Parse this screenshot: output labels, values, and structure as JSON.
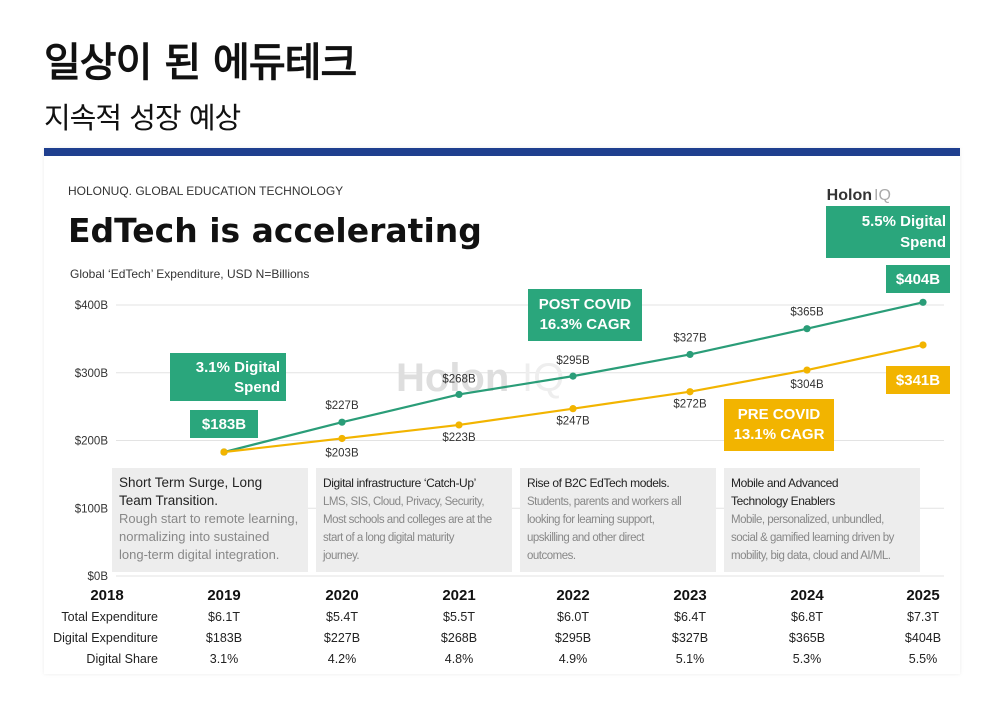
{
  "slide": {
    "title": "일상이 된 에듀테크",
    "subtitle": "지속적 성장 예상"
  },
  "colors": {
    "navy": "#1f3f8f",
    "green": "#2a9d78",
    "green_box": "#2aa67c",
    "yellow": "#f2b400",
    "grid": "#e3e3e3",
    "panel": "#ededed"
  },
  "chart_data": {
    "type": "line",
    "source": "HOLONUQ. GLOBAL EDUCATION TECHNOLOGY",
    "brand": "Holon",
    "brand_suffix": "IQ",
    "watermark": "Holon",
    "watermark_suffix": "IQ",
    "title": "EdTech is accelerating",
    "subtitle": "Global ‘EdTech’ Expenditure, USD N=Billions",
    "ylim": [
      0,
      400
    ],
    "y_ticks": [
      {
        "value": 0,
        "label": "$0B"
      },
      {
        "value": 100,
        "label": "$100B"
      },
      {
        "value": 200,
        "label": "$200B"
      },
      {
        "value": 300,
        "label": "$300B"
      },
      {
        "value": 400,
        "label": "$400B"
      }
    ],
    "categories": [
      "2018",
      "2019",
      "2020",
      "2021",
      "2022",
      "2023",
      "2024",
      "2025"
    ],
    "series": [
      {
        "name": "Post COVID",
        "color": "#2a9d78",
        "x": [
          "2019",
          "2020",
          "2021",
          "2022",
          "2023",
          "2024",
          "2025"
        ],
        "values": [
          183,
          227,
          268,
          295,
          327,
          365,
          404
        ],
        "labels": [
          "",
          "$227B",
          "$268B",
          "$295B",
          "$327B",
          "$365B",
          ""
        ]
      },
      {
        "name": "Pre COVID",
        "color": "#f2b400",
        "x": [
          "2019",
          "2020",
          "2021",
          "2022",
          "2023",
          "2024",
          "2025"
        ],
        "values": [
          183,
          203,
          223,
          247,
          272,
          304,
          341
        ],
        "labels": [
          "",
          "$203B",
          "$223B",
          "$247B",
          "$272B",
          "$304B",
          ""
        ]
      }
    ],
    "callouts": {
      "digital_2019_line1": "3.1%  Digital",
      "digital_2019_line2": "Spend",
      "value_2019": "$183B",
      "post_covid_line1": "POST COVID",
      "post_covid_line2": "16.3% CAGR",
      "digital_2025_line1": "5.5% Digital",
      "digital_2025_line2": "Spend",
      "value_2025_green": "$404B",
      "value_2025_yellow": "$341B",
      "pre_covid_line1": "PRE COVID",
      "pre_covid_line2": "13.1% CAGR"
    },
    "panels": [
      {
        "heading": [
          "Short Term Surge, Long",
          "Team Transition."
        ],
        "body": [
          "Rough start to remote learning,",
          "normalizing into sustained",
          "long-term digital integration."
        ]
      },
      {
        "heading": [
          "Digital infrastructure ‘Catch-Up’"
        ],
        "body": [
          "LMS, SIS, Cloud, Privacy, Security,",
          "Most schools and colleges are at the",
          "start of a long digital maturity",
          "journey."
        ]
      },
      {
        "heading": [
          "Rise of B2C EdTech models."
        ],
        "body": [
          "Students, parents and workers all",
          "looking for learning support,",
          "upskilling and other direct",
          "outcomes."
        ]
      },
      {
        "heading": [
          "Mobile and Advanced",
          "Technology Enablers"
        ],
        "body": [
          "Mobile, personalized, unbundled,",
          "social & gamified learning driven by",
          "mobility, big data, cloud and AI/ML."
        ]
      }
    ],
    "table": {
      "rows": [
        {
          "label": "Total Expenditure",
          "values": [
            "$6.1T",
            "$5.4T",
            "$5.5T",
            "$6.0T",
            "$6.4T",
            "$6.8T",
            "$7.3T"
          ]
        },
        {
          "label": "Digital Expenditure",
          "values": [
            "$183B",
            "$227B",
            "$268B",
            "$295B",
            "$327B",
            "$365B",
            "$404B"
          ]
        },
        {
          "label": "Digital Share",
          "values": [
            "3.1%",
            "4.2%",
            "4.8%",
            "4.9%",
            "5.1%",
            "5.3%",
            "5.5%"
          ]
        }
      ]
    }
  }
}
